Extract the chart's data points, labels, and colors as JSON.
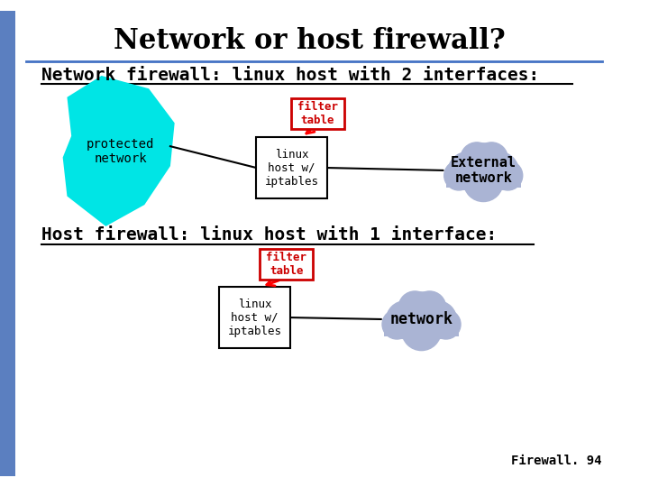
{
  "title": "Network or host firewall?",
  "title_fontsize": 22,
  "bg_color": "#ffffff",
  "title_line_color": "#4472c4",
  "section1_label": "Network firewall: linux host with 2 interfaces:",
  "section2_label": "Host firewall: linux host with 1 interface:",
  "section_fontsize": 14,
  "protected_blob_color": "#00e5e5",
  "cloud1_color": "#aab4d4",
  "cloud2_color": "#aab4d4",
  "filter_box_color": "#cc0000",
  "filter_box_bg": "#ffffff",
  "linux_box_color": "#000000",
  "linux_box_bg": "#ffffff",
  "left_sidebar_color": "#5b7fc0",
  "firewall_label": "Firewall. 94"
}
